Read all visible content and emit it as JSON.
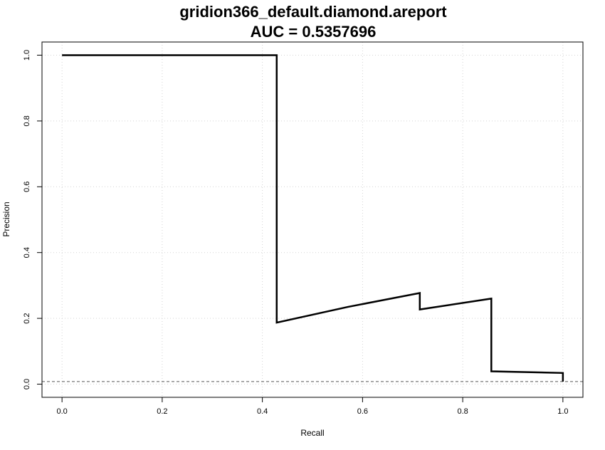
{
  "chart_data": {
    "type": "line",
    "title": "gridion366_default.diamond.areport",
    "subtitle": "AUC = 0.5357696",
    "xlabel": "Recall",
    "ylabel": "Precision",
    "xlim": [
      -0.04,
      1.04
    ],
    "ylim": [
      -0.04,
      1.04
    ],
    "x_ticks": [
      0.0,
      0.2,
      0.4,
      0.6,
      0.8,
      1.0
    ],
    "y_ticks": [
      0.0,
      0.2,
      0.4,
      0.6,
      0.8,
      1.0
    ],
    "x_tick_labels": [
      "0.0",
      "0.2",
      "0.4",
      "0.6",
      "0.8",
      "1.0"
    ],
    "y_tick_labels": [
      "0.0",
      "0.2",
      "0.4",
      "0.6",
      "0.8",
      "1.0"
    ],
    "grid": true,
    "baseline": {
      "y": 0.008,
      "style": "dashed"
    },
    "series": [
      {
        "x": [
          0.0,
          0.4286,
          0.4286,
          0.5714,
          0.7143,
          0.7143,
          0.8571,
          0.8571,
          1.0,
          1.0
        ],
        "y": [
          1.0,
          1.0,
          0.187,
          0.235,
          0.277,
          0.227,
          0.26,
          0.039,
          0.034,
          0.008
        ]
      }
    ]
  }
}
